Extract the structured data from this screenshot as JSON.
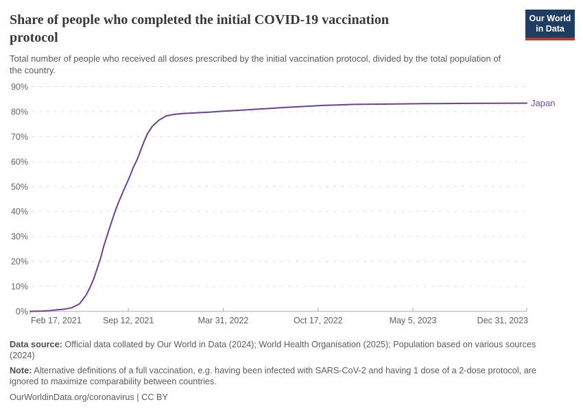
{
  "header": {
    "title_lines": [
      "Share of people who completed the initial COVID-19 vaccination",
      "protocol"
    ],
    "subtitle": "Total number of people who received all doses prescribed by the initial vaccination protocol, divided by the total population of the country.",
    "logo": {
      "line1": "Our World",
      "line2": "in Data"
    }
  },
  "chart_data": {
    "type": "line",
    "title": "Share of people who completed the initial COVID-19 vaccination protocol",
    "xlabel": "",
    "ylabel": "",
    "ylim": [
      0,
      90
    ],
    "grid": "horizontal-dashed",
    "legend_position": "end-of-line-label",
    "colors": {
      "line": "#6d3e91",
      "series_label": "#7149a5",
      "grid": "#dedede",
      "axis": "#c6c6c6",
      "tick": "#b8b8b8",
      "axis_text": "#5f5f5f"
    },
    "y_ticks": [
      {
        "value": 0,
        "label": "0%"
      },
      {
        "value": 10,
        "label": "10%"
      },
      {
        "value": 20,
        "label": "20%"
      },
      {
        "value": 30,
        "label": "30%"
      },
      {
        "value": 40,
        "label": "40%"
      },
      {
        "value": 50,
        "label": "50%"
      },
      {
        "value": 60,
        "label": "60%"
      },
      {
        "value": 70,
        "label": "70%"
      },
      {
        "value": 80,
        "label": "80%"
      },
      {
        "value": 90,
        "label": "90%"
      }
    ],
    "x_start": "2021-02-17",
    "x_end": "2023-12-31",
    "x_ticks": [
      {
        "date": "2021-02-17",
        "label": "Feb 17, 2021",
        "align": "start"
      },
      {
        "date": "2021-09-12",
        "label": "Sep 12, 2021",
        "align": "middle"
      },
      {
        "date": "2022-03-31",
        "label": "Mar 31, 2022",
        "align": "middle"
      },
      {
        "date": "2022-10-17",
        "label": "Oct 17, 2022",
        "align": "middle"
      },
      {
        "date": "2023-05-05",
        "label": "May 5, 2023",
        "align": "middle"
      },
      {
        "date": "2023-12-31",
        "label": "Dec 31, 2023",
        "align": "end"
      }
    ],
    "series": [
      {
        "name": "Japan",
        "points": [
          [
            "2021-02-17",
            0
          ],
          [
            "2021-03-15",
            0.1
          ],
          [
            "2021-04-01",
            0.3
          ],
          [
            "2021-04-15",
            0.6
          ],
          [
            "2021-05-01",
            0.9
          ],
          [
            "2021-05-15",
            1.4
          ],
          [
            "2021-06-01",
            3.0
          ],
          [
            "2021-06-15",
            6.5
          ],
          [
            "2021-06-23",
            9.5
          ],
          [
            "2021-07-01",
            13
          ],
          [
            "2021-07-08",
            17
          ],
          [
            "2021-07-15",
            21
          ],
          [
            "2021-07-22",
            26
          ],
          [
            "2021-08-01",
            32
          ],
          [
            "2021-08-08",
            36
          ],
          [
            "2021-08-15",
            40
          ],
          [
            "2021-08-22",
            43.5
          ],
          [
            "2021-09-01",
            48
          ],
          [
            "2021-09-08",
            51
          ],
          [
            "2021-09-15",
            54
          ],
          [
            "2021-09-22",
            57.5
          ],
          [
            "2021-10-01",
            61
          ],
          [
            "2021-10-08",
            64.5
          ],
          [
            "2021-10-15",
            68
          ],
          [
            "2021-10-22",
            71
          ],
          [
            "2021-11-01",
            74
          ],
          [
            "2021-11-08",
            75.3
          ],
          [
            "2021-11-15",
            76.5
          ],
          [
            "2021-12-01",
            78.3
          ],
          [
            "2021-12-15",
            78.8
          ],
          [
            "2022-01-01",
            79.2
          ],
          [
            "2022-02-01",
            79.5
          ],
          [
            "2022-03-01",
            79.8
          ],
          [
            "2022-04-01",
            80.2
          ],
          [
            "2022-05-01",
            80.5
          ],
          [
            "2022-06-01",
            80.9
          ],
          [
            "2022-07-01",
            81.2
          ],
          [
            "2022-08-01",
            81.6
          ],
          [
            "2022-09-01",
            81.9
          ],
          [
            "2022-10-01",
            82.2
          ],
          [
            "2022-11-01",
            82.5
          ],
          [
            "2022-12-01",
            82.7
          ],
          [
            "2023-01-01",
            82.9
          ],
          [
            "2023-03-01",
            83.0
          ],
          [
            "2023-06-01",
            83.2
          ],
          [
            "2023-09-01",
            83.3
          ],
          [
            "2023-12-31",
            83.4
          ]
        ]
      }
    ]
  },
  "footer": {
    "data_source_label": "Data source:",
    "data_source_text": " Official data collated by Our World in Data (2024); World Health Organisation (2025); Population based on various sources (2024)",
    "note_label": "Note:",
    "note_text": " Alternative definitions of a full vaccination, e.g. having been infected with SARS-CoV-2 and having 1 dose of a 2-dose protocol, are ignored to maximize comparability between countries.",
    "link": "OurWorldinData.org/coronavirus",
    "separator": "|",
    "license": "CC BY"
  }
}
